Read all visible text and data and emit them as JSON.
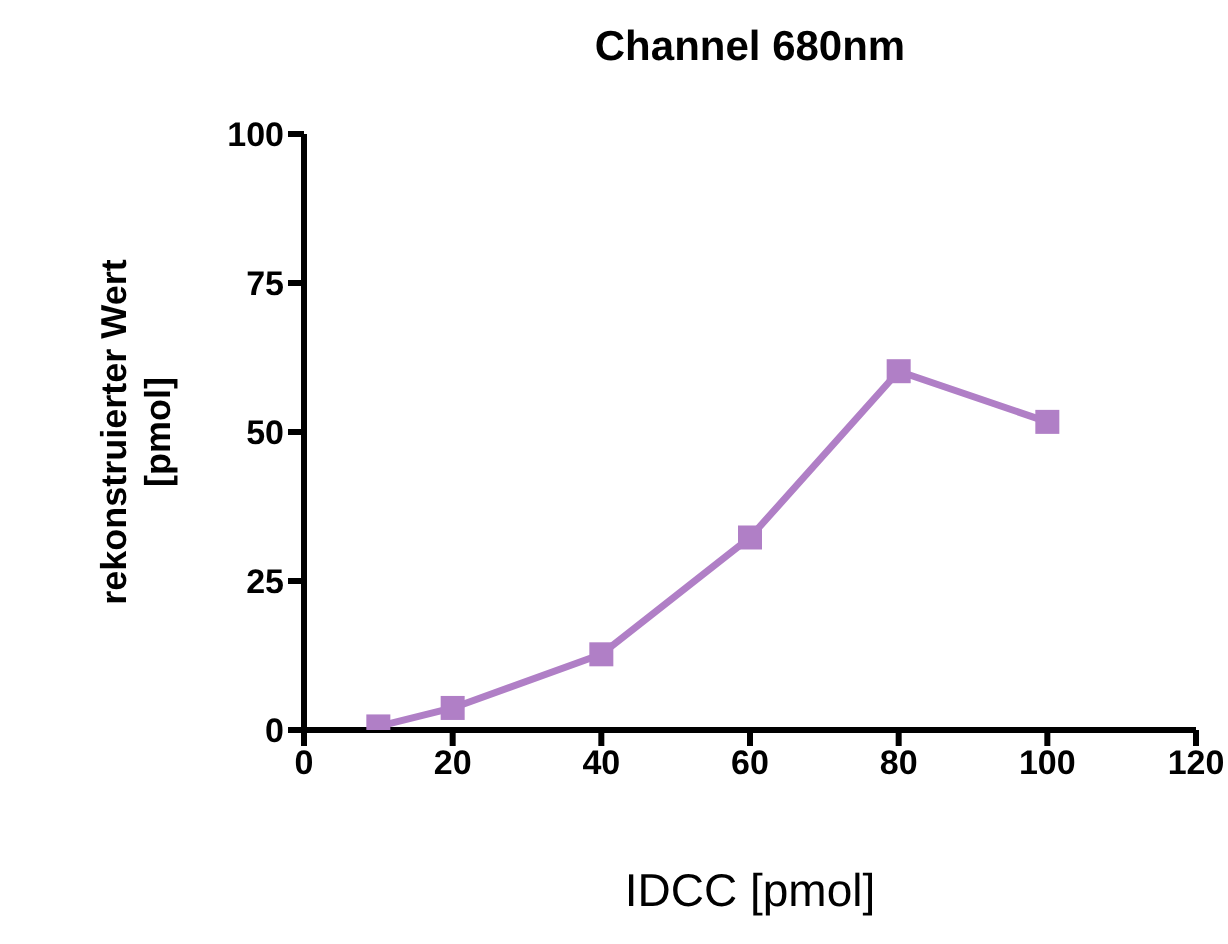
{
  "chart_data": {
    "type": "line",
    "title": "Channel 680nm",
    "xlabel": "IDCC [pmol]",
    "ylabel": "rekonstruierter Wert [pmol]",
    "x": [
      10,
      20,
      40,
      60,
      80,
      100
    ],
    "series": [
      {
        "color": "#b07fc6",
        "values": [
          0.6,
          3.7,
          12.7,
          32.3,
          60.2,
          51.7
        ]
      }
    ],
    "xlim": [
      0,
      120
    ],
    "xticks": [
      0,
      20,
      40,
      60,
      80,
      100,
      120
    ],
    "ylim": [
      0,
      100
    ],
    "yticks": [
      0,
      25,
      50,
      75,
      100
    ],
    "marker": "square",
    "grid": false,
    "legend": false
  }
}
